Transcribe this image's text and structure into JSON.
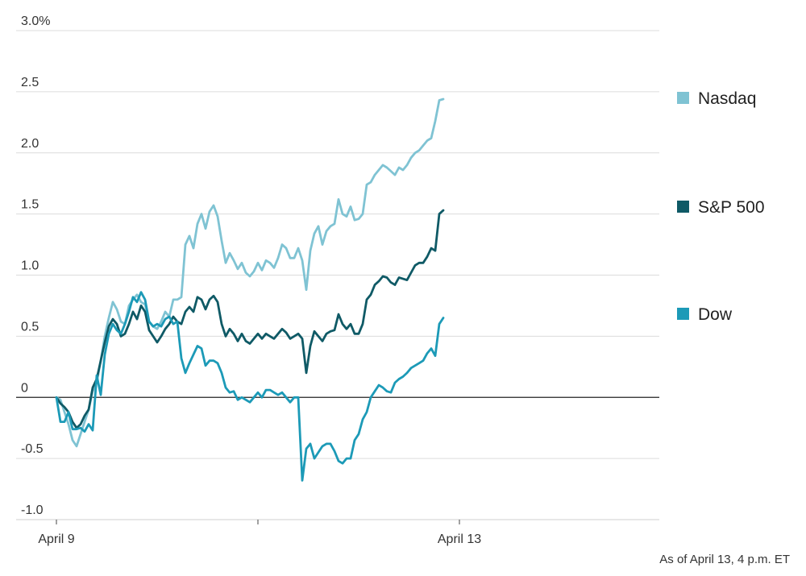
{
  "chart_data": {
    "type": "line",
    "title": "",
    "xlabel": "",
    "ylabel": "",
    "ylim": [
      -1.0,
      3.0
    ],
    "yticks": [
      {
        "value": 3.0,
        "label": "3.0%"
      },
      {
        "value": 2.5,
        "label": "2.5"
      },
      {
        "value": 2.0,
        "label": "2.0"
      },
      {
        "value": 1.5,
        "label": "1.5"
      },
      {
        "value": 1.0,
        "label": "1.0"
      },
      {
        "value": 0.5,
        "label": "0.5"
      },
      {
        "value": 0,
        "label": "0"
      },
      {
        "value": -0.5,
        "label": "-0.5"
      },
      {
        "value": -1.0,
        "label": "-1.0"
      }
    ],
    "xlim": [
      0,
      3
    ],
    "xticks": [
      {
        "value": 0,
        "label": "April 9"
      },
      {
        "value": 1,
        "label": ""
      },
      {
        "value": 2,
        "label": "April 13"
      }
    ],
    "grid": true,
    "legend_position": "right",
    "series": [
      {
        "name": "Nasdaq",
        "color": "#7fc3d3",
        "points": [
          [
            0.0,
            0.0
          ],
          [
            0.02,
            -0.02
          ],
          [
            0.04,
            -0.12
          ],
          [
            0.06,
            -0.22
          ],
          [
            0.08,
            -0.35
          ],
          [
            0.1,
            -0.4
          ],
          [
            0.12,
            -0.3
          ],
          [
            0.14,
            -0.2
          ],
          [
            0.16,
            -0.1
          ],
          [
            0.18,
            0.05
          ],
          [
            0.2,
            0.12
          ],
          [
            0.22,
            0.3
          ],
          [
            0.24,
            0.5
          ],
          [
            0.26,
            0.65
          ],
          [
            0.28,
            0.78
          ],
          [
            0.3,
            0.72
          ],
          [
            0.32,
            0.62
          ],
          [
            0.34,
            0.6
          ],
          [
            0.36,
            0.75
          ],
          [
            0.38,
            0.8
          ],
          [
            0.4,
            0.84
          ],
          [
            0.42,
            0.78
          ],
          [
            0.44,
            0.76
          ],
          [
            0.46,
            0.62
          ],
          [
            0.48,
            0.58
          ],
          [
            0.5,
            0.56
          ],
          [
            0.52,
            0.62
          ],
          [
            0.54,
            0.7
          ],
          [
            0.56,
            0.66
          ],
          [
            0.58,
            0.8
          ],
          [
            0.6,
            0.8
          ],
          [
            0.62,
            0.82
          ],
          [
            0.64,
            1.25
          ],
          [
            0.66,
            1.32
          ],
          [
            0.68,
            1.22
          ],
          [
            0.7,
            1.42
          ],
          [
            0.72,
            1.5
          ],
          [
            0.74,
            1.38
          ],
          [
            0.76,
            1.52
          ],
          [
            0.78,
            1.57
          ],
          [
            0.8,
            1.48
          ],
          [
            0.82,
            1.28
          ],
          [
            0.84,
            1.1
          ],
          [
            0.86,
            1.18
          ],
          [
            0.88,
            1.12
          ],
          [
            0.9,
            1.05
          ],
          [
            0.92,
            1.1
          ],
          [
            0.94,
            1.02
          ],
          [
            0.96,
            0.99
          ],
          [
            0.98,
            1.03
          ],
          [
            1.0,
            1.1
          ],
          [
            1.02,
            1.04
          ],
          [
            1.04,
            1.12
          ],
          [
            1.06,
            1.1
          ],
          [
            1.08,
            1.06
          ],
          [
            1.1,
            1.14
          ],
          [
            1.12,
            1.25
          ],
          [
            1.14,
            1.22
          ],
          [
            1.16,
            1.14
          ],
          [
            1.18,
            1.14
          ],
          [
            1.2,
            1.22
          ],
          [
            1.22,
            1.12
          ],
          [
            1.24,
            0.88
          ],
          [
            1.26,
            1.2
          ],
          [
            1.28,
            1.34
          ],
          [
            1.3,
            1.4
          ],
          [
            1.32,
            1.25
          ],
          [
            1.34,
            1.36
          ],
          [
            1.36,
            1.4
          ],
          [
            1.38,
            1.42
          ],
          [
            1.4,
            1.62
          ],
          [
            1.42,
            1.5
          ],
          [
            1.44,
            1.48
          ],
          [
            1.46,
            1.56
          ],
          [
            1.48,
            1.45
          ],
          [
            1.5,
            1.46
          ],
          [
            1.52,
            1.5
          ],
          [
            1.54,
            1.74
          ],
          [
            1.56,
            1.76
          ],
          [
            1.58,
            1.82
          ],
          [
            1.6,
            1.86
          ],
          [
            1.62,
            1.9
          ],
          [
            1.64,
            1.88
          ],
          [
            1.66,
            1.85
          ],
          [
            1.68,
            1.82
          ],
          [
            1.7,
            1.88
          ],
          [
            1.72,
            1.86
          ],
          [
            1.74,
            1.9
          ],
          [
            1.76,
            1.96
          ],
          [
            1.78,
            2.0
          ],
          [
            1.8,
            2.02
          ],
          [
            1.82,
            2.06
          ],
          [
            1.84,
            2.1
          ],
          [
            1.86,
            2.12
          ],
          [
            1.88,
            2.26
          ],
          [
            1.9,
            2.43
          ],
          [
            1.92,
            2.44
          ]
        ]
      },
      {
        "name": "S&P 500",
        "color": "#0f5a66",
        "points": [
          [
            0.0,
            0.0
          ],
          [
            0.02,
            -0.05
          ],
          [
            0.04,
            -0.08
          ],
          [
            0.06,
            -0.12
          ],
          [
            0.08,
            -0.2
          ],
          [
            0.1,
            -0.25
          ],
          [
            0.12,
            -0.22
          ],
          [
            0.14,
            -0.15
          ],
          [
            0.16,
            -0.1
          ],
          [
            0.18,
            0.08
          ],
          [
            0.2,
            0.15
          ],
          [
            0.22,
            0.3
          ],
          [
            0.24,
            0.45
          ],
          [
            0.26,
            0.58
          ],
          [
            0.28,
            0.64
          ],
          [
            0.3,
            0.6
          ],
          [
            0.32,
            0.5
          ],
          [
            0.34,
            0.52
          ],
          [
            0.36,
            0.6
          ],
          [
            0.38,
            0.7
          ],
          [
            0.4,
            0.64
          ],
          [
            0.42,
            0.75
          ],
          [
            0.44,
            0.7
          ],
          [
            0.46,
            0.55
          ],
          [
            0.48,
            0.5
          ],
          [
            0.5,
            0.45
          ],
          [
            0.52,
            0.5
          ],
          [
            0.54,
            0.56
          ],
          [
            0.56,
            0.6
          ],
          [
            0.58,
            0.66
          ],
          [
            0.6,
            0.62
          ],
          [
            0.62,
            0.6
          ],
          [
            0.64,
            0.7
          ],
          [
            0.66,
            0.74
          ],
          [
            0.68,
            0.7
          ],
          [
            0.7,
            0.82
          ],
          [
            0.72,
            0.8
          ],
          [
            0.74,
            0.72
          ],
          [
            0.76,
            0.8
          ],
          [
            0.78,
            0.83
          ],
          [
            0.8,
            0.78
          ],
          [
            0.82,
            0.6
          ],
          [
            0.84,
            0.5
          ],
          [
            0.86,
            0.56
          ],
          [
            0.88,
            0.52
          ],
          [
            0.9,
            0.46
          ],
          [
            0.92,
            0.52
          ],
          [
            0.94,
            0.46
          ],
          [
            0.96,
            0.44
          ],
          [
            0.98,
            0.48
          ],
          [
            1.0,
            0.52
          ],
          [
            1.02,
            0.48
          ],
          [
            1.04,
            0.52
          ],
          [
            1.06,
            0.5
          ],
          [
            1.08,
            0.48
          ],
          [
            1.1,
            0.52
          ],
          [
            1.12,
            0.56
          ],
          [
            1.14,
            0.53
          ],
          [
            1.16,
            0.48
          ],
          [
            1.18,
            0.5
          ],
          [
            1.2,
            0.52
          ],
          [
            1.22,
            0.48
          ],
          [
            1.24,
            0.2
          ],
          [
            1.26,
            0.42
          ],
          [
            1.28,
            0.54
          ],
          [
            1.3,
            0.5
          ],
          [
            1.32,
            0.46
          ],
          [
            1.34,
            0.52
          ],
          [
            1.36,
            0.54
          ],
          [
            1.38,
            0.55
          ],
          [
            1.4,
            0.68
          ],
          [
            1.42,
            0.6
          ],
          [
            1.44,
            0.56
          ],
          [
            1.46,
            0.6
          ],
          [
            1.48,
            0.52
          ],
          [
            1.5,
            0.52
          ],
          [
            1.52,
            0.6
          ],
          [
            1.54,
            0.8
          ],
          [
            1.56,
            0.84
          ],
          [
            1.58,
            0.92
          ],
          [
            1.6,
            0.95
          ],
          [
            1.62,
            0.99
          ],
          [
            1.64,
            0.98
          ],
          [
            1.66,
            0.94
          ],
          [
            1.68,
            0.92
          ],
          [
            1.7,
            0.98
          ],
          [
            1.72,
            0.97
          ],
          [
            1.74,
            0.96
          ],
          [
            1.76,
            1.02
          ],
          [
            1.78,
            1.08
          ],
          [
            1.8,
            1.1
          ],
          [
            1.82,
            1.1
          ],
          [
            1.84,
            1.15
          ],
          [
            1.86,
            1.22
          ],
          [
            1.88,
            1.2
          ],
          [
            1.9,
            1.5
          ],
          [
            1.92,
            1.53
          ]
        ]
      },
      {
        "name": "Dow",
        "color": "#1c9ab7",
        "points": [
          [
            0.0,
            0.0
          ],
          [
            0.02,
            -0.2
          ],
          [
            0.04,
            -0.2
          ],
          [
            0.06,
            -0.12
          ],
          [
            0.08,
            -0.26
          ],
          [
            0.1,
            -0.26
          ],
          [
            0.12,
            -0.25
          ],
          [
            0.14,
            -0.28
          ],
          [
            0.16,
            -0.22
          ],
          [
            0.18,
            -0.27
          ],
          [
            0.2,
            0.18
          ],
          [
            0.22,
            0.02
          ],
          [
            0.24,
            0.35
          ],
          [
            0.26,
            0.52
          ],
          [
            0.28,
            0.6
          ],
          [
            0.3,
            0.55
          ],
          [
            0.32,
            0.52
          ],
          [
            0.34,
            0.6
          ],
          [
            0.36,
            0.7
          ],
          [
            0.38,
            0.82
          ],
          [
            0.4,
            0.78
          ],
          [
            0.42,
            0.86
          ],
          [
            0.44,
            0.8
          ],
          [
            0.46,
            0.62
          ],
          [
            0.48,
            0.58
          ],
          [
            0.5,
            0.6
          ],
          [
            0.52,
            0.58
          ],
          [
            0.54,
            0.64
          ],
          [
            0.56,
            0.66
          ],
          [
            0.58,
            0.6
          ],
          [
            0.6,
            0.62
          ],
          [
            0.62,
            0.32
          ],
          [
            0.64,
            0.2
          ],
          [
            0.66,
            0.28
          ],
          [
            0.68,
            0.35
          ],
          [
            0.7,
            0.42
          ],
          [
            0.72,
            0.4
          ],
          [
            0.74,
            0.26
          ],
          [
            0.76,
            0.3
          ],
          [
            0.78,
            0.3
          ],
          [
            0.8,
            0.28
          ],
          [
            0.82,
            0.2
          ],
          [
            0.84,
            0.08
          ],
          [
            0.86,
            0.04
          ],
          [
            0.88,
            0.05
          ],
          [
            0.9,
            -0.02
          ],
          [
            0.92,
            0.0
          ],
          [
            0.94,
            -0.02
          ],
          [
            0.96,
            -0.04
          ],
          [
            0.98,
            0.0
          ],
          [
            1.0,
            0.04
          ],
          [
            1.02,
            0.0
          ],
          [
            1.04,
            0.06
          ],
          [
            1.06,
            0.06
          ],
          [
            1.08,
            0.04
          ],
          [
            1.1,
            0.02
          ],
          [
            1.12,
            0.04
          ],
          [
            1.14,
            0.0
          ],
          [
            1.16,
            -0.04
          ],
          [
            1.18,
            0.0
          ],
          [
            1.2,
            0.0
          ],
          [
            1.22,
            -0.68
          ],
          [
            1.24,
            -0.42
          ],
          [
            1.26,
            -0.38
          ],
          [
            1.28,
            -0.5
          ],
          [
            1.3,
            -0.45
          ],
          [
            1.32,
            -0.4
          ],
          [
            1.34,
            -0.38
          ],
          [
            1.36,
            -0.38
          ],
          [
            1.38,
            -0.44
          ],
          [
            1.4,
            -0.52
          ],
          [
            1.42,
            -0.54
          ],
          [
            1.44,
            -0.5
          ],
          [
            1.46,
            -0.5
          ],
          [
            1.48,
            -0.35
          ],
          [
            1.5,
            -0.3
          ],
          [
            1.52,
            -0.18
          ],
          [
            1.54,
            -0.12
          ],
          [
            1.56,
            0.0
          ],
          [
            1.58,
            0.05
          ],
          [
            1.6,
            0.1
          ],
          [
            1.62,
            0.08
          ],
          [
            1.64,
            0.05
          ],
          [
            1.66,
            0.04
          ],
          [
            1.68,
            0.12
          ],
          [
            1.7,
            0.15
          ],
          [
            1.72,
            0.17
          ],
          [
            1.74,
            0.2
          ],
          [
            1.76,
            0.24
          ],
          [
            1.78,
            0.26
          ],
          [
            1.8,
            0.28
          ],
          [
            1.82,
            0.3
          ],
          [
            1.84,
            0.36
          ],
          [
            1.86,
            0.4
          ],
          [
            1.88,
            0.34
          ],
          [
            1.9,
            0.6
          ],
          [
            1.92,
            0.65
          ]
        ]
      }
    ],
    "legend": [
      {
        "name": "Nasdaq",
        "color": "#7fc3d3"
      },
      {
        "name": "S&P 500",
        "color": "#0f5a66"
      },
      {
        "name": "Dow",
        "color": "#1c9ab7"
      }
    ]
  },
  "footnote": "As of April 13, 4 p.m. ET"
}
